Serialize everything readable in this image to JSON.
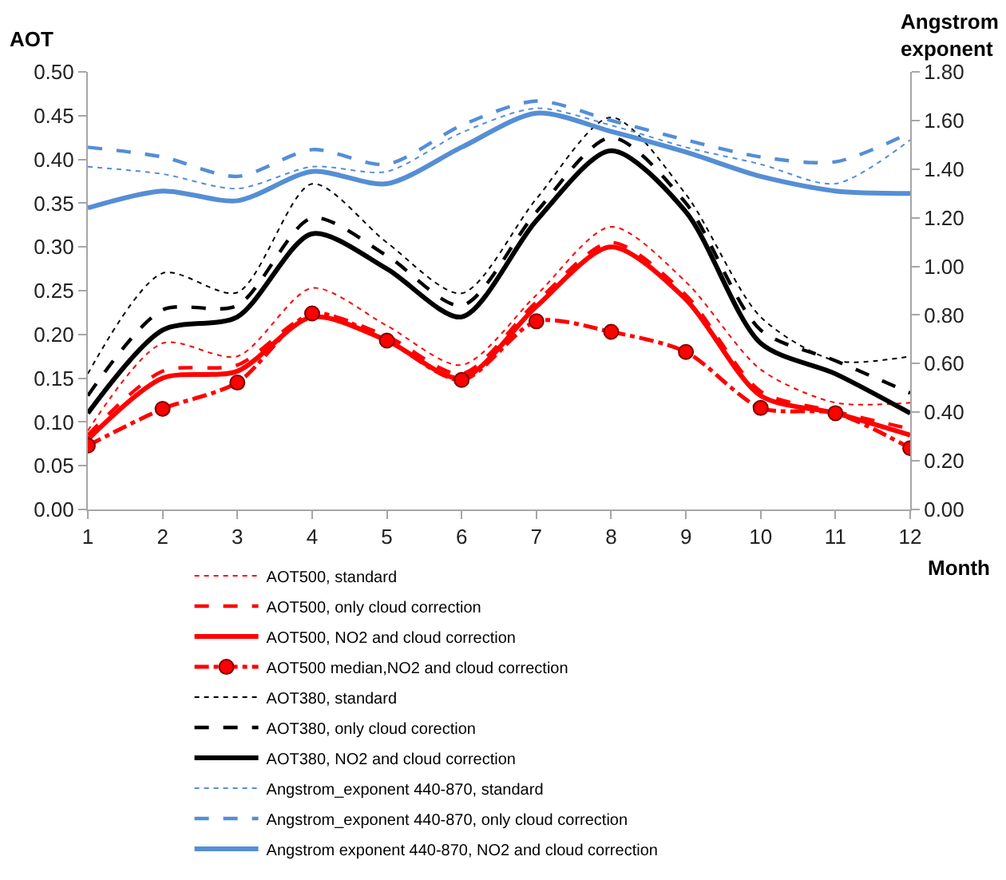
{
  "chart_data": {
    "type": "line",
    "xlabel": "Month",
    "ylabel": "AOT",
    "y2label": "Angstrom exponent",
    "x": [
      1,
      2,
      3,
      4,
      5,
      6,
      7,
      8,
      9,
      10,
      11,
      12
    ],
    "xlim": [
      1,
      12
    ],
    "xticks": [
      1,
      2,
      3,
      4,
      5,
      6,
      7,
      8,
      9,
      10,
      11,
      12
    ],
    "ylim": [
      0,
      0.5
    ],
    "yticks": [
      {
        "value": 0,
        "label": "0.00"
      },
      {
        "value": 0.05,
        "label": "0.05"
      },
      {
        "value": 0.1,
        "label": "0.10"
      },
      {
        "value": 0.15,
        "label": "0.15"
      },
      {
        "value": 0.2,
        "label": "0.20"
      },
      {
        "value": 0.25,
        "label": "0.25"
      },
      {
        "value": 0.3,
        "label": "0.30"
      },
      {
        "value": 0.35,
        "label": "0.35"
      },
      {
        "value": 0.4,
        "label": "0.40"
      },
      {
        "value": 0.45,
        "label": "0.45"
      },
      {
        "value": 0.5,
        "label": "0.50"
      }
    ],
    "y2lim": [
      0,
      1.8
    ],
    "y2ticks": [
      {
        "value": 0,
        "label": "0.00"
      },
      {
        "value": 0.2,
        "label": "0.20"
      },
      {
        "value": 0.4,
        "label": "0.40"
      },
      {
        "value": 0.6,
        "label": "0.60"
      },
      {
        "value": 0.8,
        "label": "0.80"
      },
      {
        "value": 1,
        "label": "1.00"
      },
      {
        "value": 1.2,
        "label": "1.20"
      },
      {
        "value": 1.4,
        "label": "1.40"
      },
      {
        "value": 1.6,
        "label": "1.60"
      },
      {
        "value": 1.8,
        "label": "1.80"
      }
    ],
    "grid": false,
    "legend": "bottom",
    "series": [
      {
        "name": "AOT500, standard",
        "color": "#ff0000",
        "line_style": "dotted",
        "values": [
          0.09,
          0.19,
          0.175,
          0.253,
          0.21,
          0.165,
          0.245,
          0.323,
          0.26,
          0.16,
          0.122,
          0.122
        ]
      },
      {
        "name": "AOT500, only cloud correction",
        "color": "#ff0000",
        "line_style": "dashed",
        "values": [
          0.085,
          0.158,
          0.165,
          0.223,
          0.198,
          0.155,
          0.237,
          0.305,
          0.245,
          0.135,
          0.112,
          0.092
        ]
      },
      {
        "name": "AOT500, NO2 and cloud correction",
        "color": "#ff0000",
        "line_style": "solid",
        "values": [
          0.08,
          0.15,
          0.158,
          0.22,
          0.193,
          0.15,
          0.232,
          0.3,
          0.24,
          0.13,
          0.11,
          0.085
        ]
      },
      {
        "name": "AOT500 median,NO2 and cloud correction",
        "color": "#ff0000",
        "line_style": "dashdot",
        "marker": "circle",
        "values": [
          0.073,
          0.115,
          0.145,
          0.224,
          0.193,
          0.148,
          0.215,
          0.203,
          0.18,
          0.116,
          0.11,
          0.07
        ]
      },
      {
        "name": "AOT380, standard",
        "color": "#000000",
        "line_style": "dotted",
        "values": [
          0.155,
          0.27,
          0.248,
          0.372,
          0.305,
          0.247,
          0.355,
          0.448,
          0.36,
          0.22,
          0.17,
          0.175
        ]
      },
      {
        "name": "AOT380, only cloud corection",
        "color": "#000000",
        "line_style": "dashed",
        "values": [
          0.13,
          0.228,
          0.233,
          0.333,
          0.29,
          0.233,
          0.34,
          0.425,
          0.35,
          0.205,
          0.17,
          0.133
        ]
      },
      {
        "name": "AOT380, NO2 and cloud correction",
        "color": "#000000",
        "line_style": "solid",
        "values": [
          0.11,
          0.205,
          0.22,
          0.315,
          0.275,
          0.22,
          0.33,
          0.41,
          0.34,
          0.19,
          0.155,
          0.11
        ]
      },
      {
        "name": "Angstrom_exponent 440-870, standard",
        "color": "#558ed5",
        "line_style": "dotted",
        "axis": "y2",
        "values": [
          1.41,
          1.38,
          1.32,
          1.41,
          1.39,
          1.55,
          1.65,
          1.58,
          1.49,
          1.42,
          1.34,
          1.52
        ]
      },
      {
        "name": "Angstrom_exponent 440-870, only cloud correction",
        "color": "#558ed5",
        "line_style": "dashed",
        "axis": "y2",
        "values": [
          1.49,
          1.45,
          1.37,
          1.48,
          1.42,
          1.58,
          1.68,
          1.6,
          1.52,
          1.45,
          1.43,
          1.55
        ]
      },
      {
        "name": "Angstrom exponent 440-870, NO2 and cloud correction",
        "color": "#558ed5",
        "line_style": "solid",
        "axis": "y2",
        "values": [
          1.24,
          1.31,
          1.27,
          1.39,
          1.34,
          1.49,
          1.63,
          1.555,
          1.47,
          1.37,
          1.31,
          1.3
        ]
      }
    ]
  }
}
